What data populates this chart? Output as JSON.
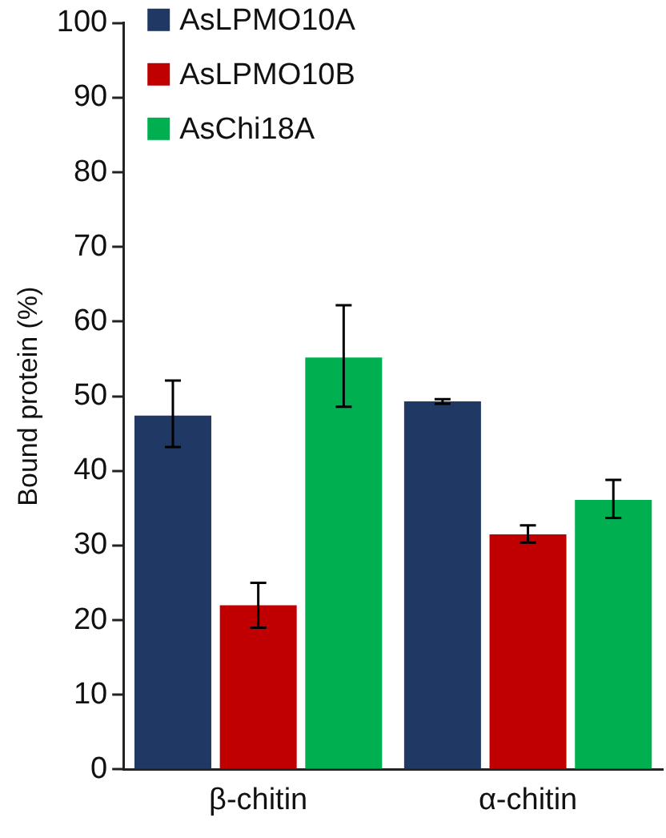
{
  "chart_data": {
    "type": "bar",
    "ylabel": "Bound protein (%)",
    "categories": [
      "β-chitin",
      "α-chitin"
    ],
    "series": [
      {
        "name": "AsLPMO10A",
        "color": "#203864",
        "values": [
          47.4,
          49.3
        ],
        "errors": [
          [
            43.2,
            52.1
          ],
          [
            49,
            49.6
          ]
        ]
      },
      {
        "name": "AsLPMO10B",
        "color": "#c00000",
        "values": [
          22,
          31.5
        ],
        "errors": [
          [
            19,
            25
          ],
          [
            30.4,
            32.7
          ]
        ]
      },
      {
        "name": "AsChi18A",
        "color": "#00b050",
        "values": [
          55.2,
          36.1
        ],
        "errors": [
          [
            48.6,
            62.2
          ],
          [
            33.7,
            38.8
          ]
        ]
      }
    ],
    "ylim": [
      0,
      100
    ],
    "yticks": [
      0,
      10,
      20,
      30,
      40,
      50,
      60,
      70,
      80,
      90,
      100
    ],
    "grid": false,
    "legend": "top left"
  }
}
